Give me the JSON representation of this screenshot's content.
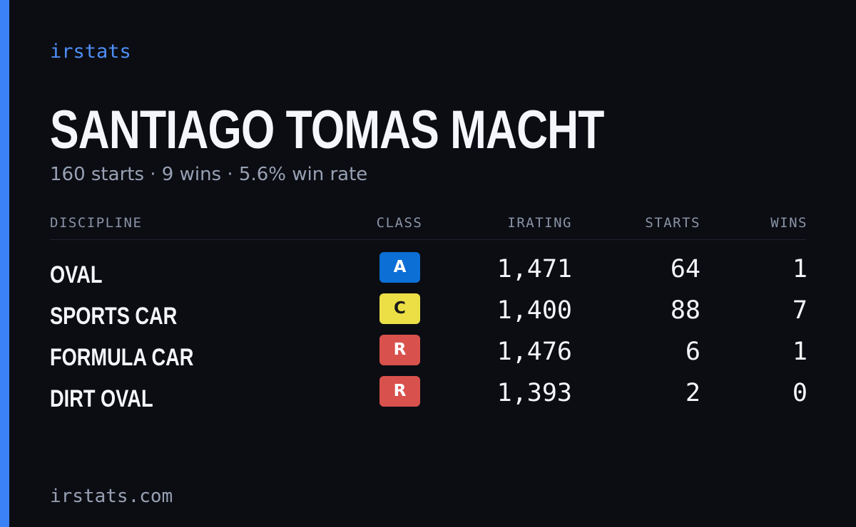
{
  "brand": "irstats",
  "driver": {
    "name": "SANTIAGO TOMAS MACHT",
    "summary": "160 starts · 9 wins · 5.6% win rate"
  },
  "table": {
    "headers": {
      "discipline": "DISCIPLINE",
      "class": "CLASS",
      "irating": "IRATING",
      "starts": "STARTS",
      "wins": "WINS"
    },
    "rows": [
      {
        "discipline": "OVAL",
        "class": "A",
        "class_color": "#0b6fd6",
        "class_text_color": "#ffffff",
        "irating": "1,471",
        "starts": "64",
        "wins": "1"
      },
      {
        "discipline": "SPORTS CAR",
        "class": "C",
        "class_color": "#ecdf45",
        "class_text_color": "#1a1a1a",
        "irating": "1,400",
        "starts": "88",
        "wins": "7"
      },
      {
        "discipline": "FORMULA CAR",
        "class": "R",
        "class_color": "#d9514c",
        "class_text_color": "#ffffff",
        "irating": "1,476",
        "starts": "6",
        "wins": "1"
      },
      {
        "discipline": "DIRT OVAL",
        "class": "R",
        "class_color": "#d9514c",
        "class_text_color": "#ffffff",
        "irating": "1,393",
        "starts": "2",
        "wins": "0"
      }
    ]
  },
  "footer": "irstats.com",
  "colors": {
    "accent": "#3b82f6",
    "background": "#0b0d13",
    "muted_text": "#98a1b3"
  }
}
